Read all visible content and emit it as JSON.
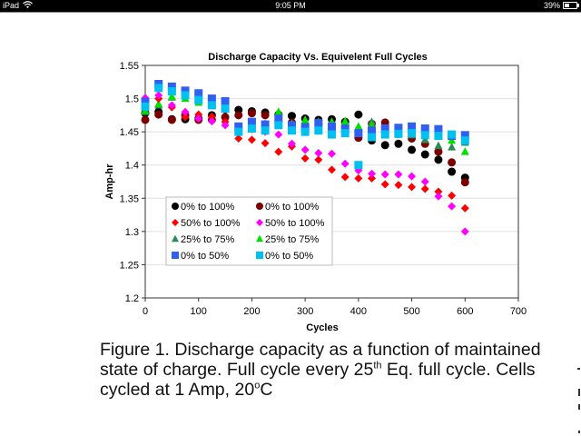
{
  "status_bar": {
    "device": "iPad",
    "time": "9:05 PM",
    "battery": "39%",
    "battery_level": 0.39,
    "icons": [
      "wifi-icon",
      "battery-icon"
    ]
  },
  "caption": {
    "line1": "Figure 1. Discharge capacity as a function of maintained",
    "line2_pre": "state of charge. Full cycle every 25",
    "line2_sup": "th",
    "line2_post": " Eq. full cycle. Cells",
    "line3_pre": "cycled at 1 Amp, 20",
    "line3_sup": "o",
    "line3_post": "C"
  },
  "chart_data": {
    "type": "scatter",
    "title": "Discharge Capacity Vs. Equivelent Full Cycles",
    "xlabel": "Cycles",
    "ylabel": "Amp-hr",
    "xlim": [
      0,
      700
    ],
    "ylim": [
      1.2,
      1.55
    ],
    "xticks": [
      "0",
      "100",
      "200",
      "300",
      "400",
      "500",
      "600",
      "700"
    ],
    "yticks": [
      "1.2",
      "1.25",
      "1.3",
      "1.35",
      "1.4",
      "1.45",
      "1.5",
      "1.55"
    ],
    "grid": "horizontal",
    "legend_position": "lower-left",
    "x": [
      0,
      25,
      50,
      75,
      100,
      125,
      150,
      175,
      200,
      225,
      250,
      275,
      300,
      325,
      350,
      375,
      400,
      425,
      450,
      475,
      500,
      525,
      550,
      575,
      600
    ],
    "series": [
      {
        "name": "0% to 100%",
        "marker": "circle",
        "color": "#000000",
        "values": [
          1.478,
          1.48,
          1.469,
          1.469,
          1.47,
          1.475,
          1.484,
          1.483,
          1.481,
          1.479,
          1.476,
          1.474,
          1.47,
          1.468,
          1.469,
          1.465,
          1.476,
          1.437,
          1.43,
          1.432,
          1.423,
          1.416,
          1.408,
          1.39,
          1.381
        ]
      },
      {
        "name": "0% to 100%",
        "marker": "circle",
        "color": "#7b0000",
        "values": [
          1.468,
          1.476,
          1.468,
          1.475,
          1.468,
          1.468,
          1.472,
          1.475,
          1.478,
          1.475,
          1.465,
          1.464,
          1.458,
          1.462,
          1.458,
          1.458,
          1.441,
          1.462,
          1.464,
          1.447,
          1.44,
          1.432,
          1.42,
          1.404,
          1.374
        ]
      },
      {
        "name": "50% to 100%",
        "marker": "diamond",
        "color": "#ff0000",
        "values": [
          1.49,
          1.5,
          1.487,
          1.472,
          1.476,
          1.473,
          1.465,
          1.44,
          1.438,
          1.433,
          1.42,
          1.428,
          1.41,
          1.408,
          1.393,
          1.382,
          1.38,
          1.38,
          1.371,
          1.37,
          1.367,
          1.364,
          1.36,
          1.354,
          1.335
        ]
      },
      {
        "name": "50% to 100%",
        "marker": "diamond",
        "color": "#ff00ff",
        "values": [
          1.501,
          1.505,
          1.49,
          1.48,
          1.47,
          1.466,
          1.46,
          1.458,
          1.454,
          1.45,
          1.446,
          1.432,
          1.423,
          1.418,
          1.417,
          1.402,
          1.392,
          1.387,
          1.386,
          1.386,
          1.383,
          1.375,
          1.353,
          1.338,
          1.3
        ]
      },
      {
        "name": "25% to 75%",
        "marker": "triangle",
        "color": "#2e8b57",
        "values": [
          1.48,
          1.49,
          1.502,
          1.505,
          1.497,
          1.494,
          1.492,
          1.455,
          1.462,
          1.462,
          1.479,
          1.46,
          1.458,
          1.452,
          1.458,
          1.455,
          1.448,
          1.465,
          1.455,
          1.448,
          1.445,
          1.438,
          1.429,
          1.427,
          1.434
        ]
      },
      {
        "name": "25% to 75%",
        "marker": "triangle",
        "color": "#00e000",
        "values": [
          1.482,
          1.492,
          1.503,
          1.5,
          1.494,
          1.49,
          1.49,
          1.458,
          1.455,
          1.452,
          1.48,
          1.462,
          1.468,
          1.465,
          1.465,
          1.466,
          1.458,
          1.46,
          1.451,
          1.45,
          1.455,
          1.447,
          1.443,
          1.437,
          1.42
        ]
      },
      {
        "name": "0% to 50%",
        "marker": "square",
        "color": "#3060f0",
        "values": [
          1.495,
          1.522,
          1.518,
          1.512,
          1.508,
          1.5,
          1.496,
          1.458,
          1.465,
          1.461,
          1.47,
          1.46,
          1.457,
          1.463,
          1.458,
          1.455,
          1.448,
          1.452,
          1.455,
          1.456,
          1.458,
          1.455,
          1.454,
          1.444,
          1.445
        ]
      },
      {
        "name": "0% to 50%",
        "marker": "square",
        "color": "#00c0f0",
        "values": [
          1.488,
          1.516,
          1.511,
          1.505,
          1.498,
          1.49,
          1.485,
          1.45,
          1.455,
          1.452,
          1.46,
          1.452,
          1.45,
          1.452,
          1.446,
          1.448,
          1.4,
          1.442,
          1.446,
          1.447,
          1.448,
          1.445,
          1.444,
          1.446,
          1.437
        ]
      }
    ]
  }
}
